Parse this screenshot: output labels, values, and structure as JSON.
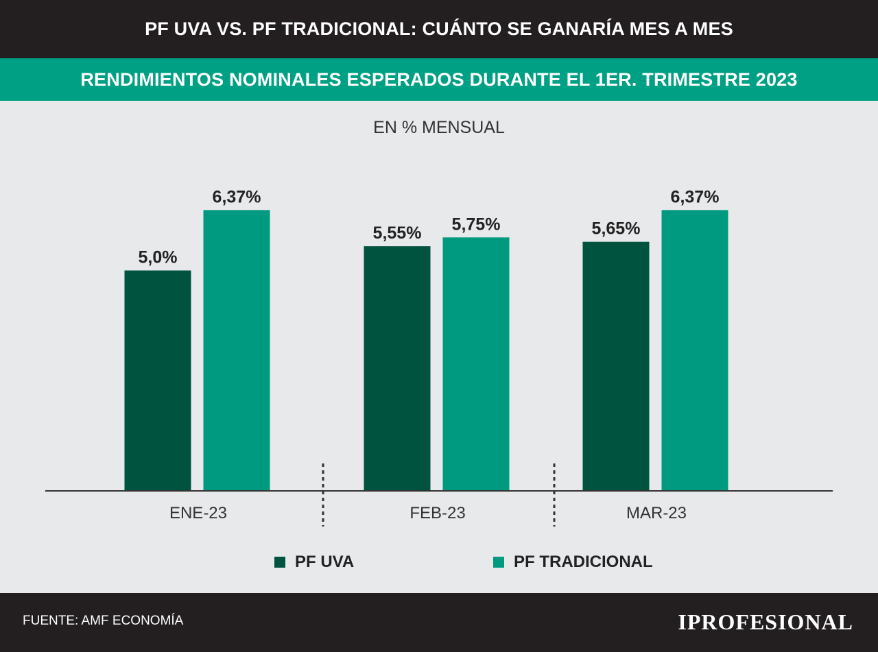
{
  "header": {
    "title": "PF UVA VS. PF TRADICIONAL: CUÁNTO SE GANARÍA MES A MES",
    "subtitle": "RENDIMIENTOS NOMINALES ESPERADOS DURANTE EL 1ER. TRIMESTRE 2023"
  },
  "footer": {
    "source": "FUENTE: AMF ECONOMÍA",
    "logo": "IPROFESIONAL"
  },
  "colors": {
    "header_bg": "#231f20",
    "accent": "#00a084",
    "pf_uva": "#00533f",
    "pf_tradicional": "#009a80",
    "background": "#e8e9eb"
  },
  "chart_data": {
    "type": "bar",
    "title": "RENDIMIENTOS NOMINALES ESPERADOS DURANTE EL 1ER. TRIMESTRE 2023",
    "ylabel": "EN % MENSUAL",
    "categories": [
      "ENE-23",
      "FEB-23",
      "MAR-23"
    ],
    "series": [
      {
        "name": "PF UVA",
        "values": [
          5.0,
          5.55,
          5.65
        ],
        "labels": [
          "5,0%",
          "5,55%",
          "5,65%"
        ],
        "color": "#00533f"
      },
      {
        "name": "PF TRADICIONAL",
        "values": [
          6.37,
          5.75,
          6.37
        ],
        "labels": [
          "6,37%",
          "5,75%",
          "6,37%"
        ],
        "color": "#009a80"
      }
    ],
    "ylim": [
      0,
      7.4
    ],
    "grid": false,
    "legend": "bottom-center"
  }
}
